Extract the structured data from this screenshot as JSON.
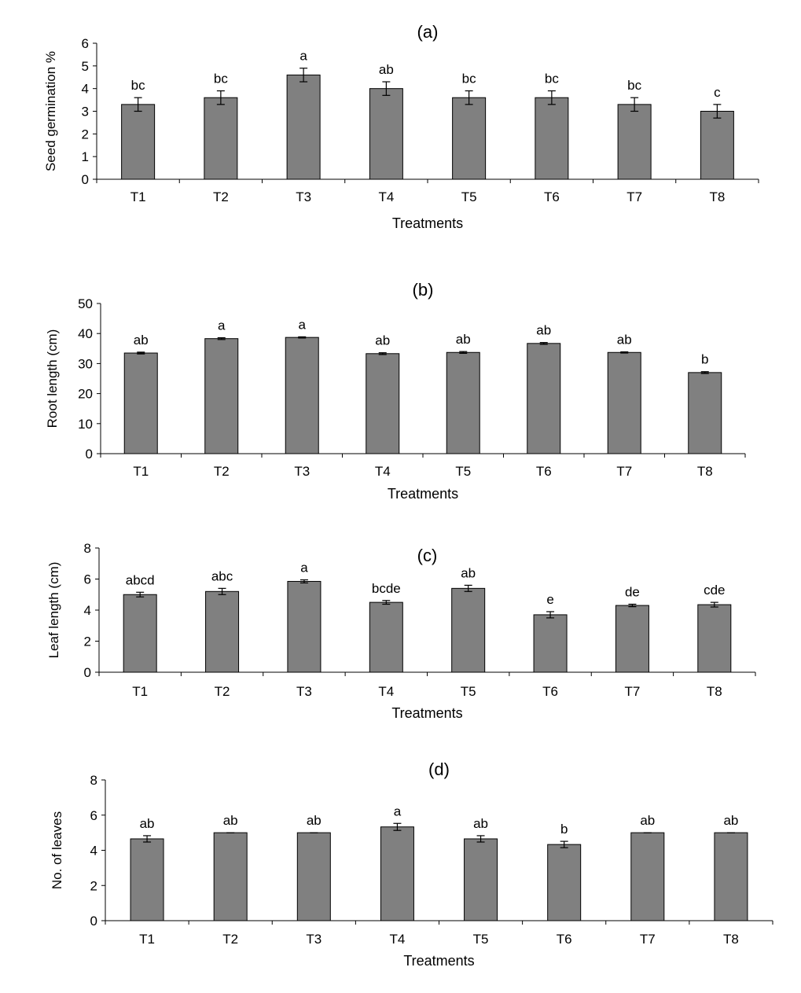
{
  "chart_data": [
    {
      "type": "bar",
      "title": "(a)",
      "xlabel": "Treatments",
      "ylabel": "Seed germination %",
      "ylim": [
        0,
        6
      ],
      "yticks": [
        "0",
        "1",
        "2",
        "3",
        "4",
        "5",
        "6"
      ],
      "categories": [
        "T1",
        "T2",
        "T3",
        "T4",
        "T5",
        "T6",
        "T7",
        "T8"
      ],
      "values": [
        3.3,
        3.6,
        4.6,
        4.0,
        3.6,
        3.6,
        3.3,
        3.0
      ],
      "errors": [
        0.3,
        0.3,
        0.3,
        0.3,
        0.3,
        0.3,
        0.3,
        0.3
      ],
      "letters": [
        "bc",
        "bc",
        "a",
        "ab",
        "bc",
        "bc",
        "bc",
        "c"
      ],
      "grid": false
    },
    {
      "type": "bar",
      "title": "(b)",
      "xlabel": "Treatments",
      "ylabel": "Root length (cm)",
      "ylim": [
        0,
        50
      ],
      "yticks": [
        "0",
        "10",
        "20",
        "30",
        "40",
        "50"
      ],
      "categories": [
        "T1",
        "T2",
        "T3",
        "T4",
        "T5",
        "T6",
        "T7",
        "T8"
      ],
      "values": [
        33.5,
        38.3,
        38.7,
        33.3,
        33.7,
        36.7,
        33.7,
        27.0
      ],
      "errors": [
        0.3,
        0.3,
        0.2,
        0.3,
        0.3,
        0.3,
        0.2,
        0.3
      ],
      "letters": [
        "ab",
        "a",
        "a",
        "ab",
        "ab",
        "ab",
        "ab",
        "b"
      ],
      "grid": false
    },
    {
      "type": "bar",
      "title": "(c)",
      "xlabel": "Treatments",
      "ylabel": "Leaf length (cm)",
      "ylim": [
        0,
        8
      ],
      "yticks": [
        "0",
        "2",
        "4",
        "6",
        "8"
      ],
      "categories": [
        "T1",
        "T2",
        "T3",
        "T4",
        "T5",
        "T6",
        "T7",
        "T8"
      ],
      "values": [
        5.0,
        5.2,
        5.85,
        4.5,
        5.4,
        3.7,
        4.3,
        4.35
      ],
      "errors": [
        0.15,
        0.2,
        0.1,
        0.12,
        0.2,
        0.2,
        0.08,
        0.15
      ],
      "letters": [
        "abcd",
        "abc",
        "a",
        "bcde",
        "ab",
        "e",
        "de",
        "cde"
      ],
      "grid": false
    },
    {
      "type": "bar",
      "title": "(d)",
      "xlabel": "Treatments",
      "ylabel": "No. of leaves",
      "ylim": [
        0,
        8
      ],
      "yticks": [
        "0",
        "2",
        "4",
        "6",
        "8"
      ],
      "categories": [
        "T1",
        "T2",
        "T3",
        "T4",
        "T5",
        "T6",
        "T7",
        "T8"
      ],
      "values": [
        4.65,
        5.0,
        5.0,
        5.33,
        4.65,
        4.33,
        5.0,
        5.0
      ],
      "errors": [
        0.18,
        0.0,
        0.0,
        0.2,
        0.18,
        0.18,
        0.0,
        0.0
      ],
      "letters": [
        "ab",
        "ab",
        "ab",
        "a",
        "ab",
        "b",
        "ab",
        "ab"
      ],
      "grid": false
    }
  ]
}
